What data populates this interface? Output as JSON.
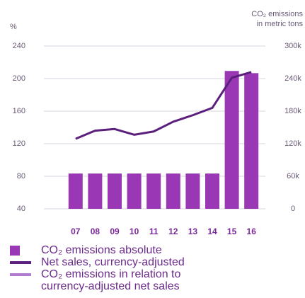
{
  "chart_data": {
    "type": "bar-line",
    "y_label": "%",
    "y2_label": "CO₂ emissions\nin metric tons",
    "categories": [
      "07",
      "08",
      "09",
      "10",
      "11",
      "12",
      "13",
      "14",
      "15",
      "16"
    ],
    "ylim": [
      40,
      240
    ],
    "yticks": [
      40,
      80,
      120,
      160,
      200,
      240
    ],
    "y2lim": [
      0,
      300000
    ],
    "y2ticks": [
      {
        "value": 0,
        "label": "0"
      },
      {
        "value": 60000,
        "label": "60k"
      },
      {
        "value": 120000,
        "label": "120k"
      },
      {
        "value": 180000,
        "label": "180k"
      },
      {
        "value": 240000,
        "label": "240k"
      },
      {
        "value": 300000,
        "label": "300k"
      }
    ],
    "grid": true,
    "series": [
      {
        "name": "CO₂ emissions absolute",
        "type": "bar",
        "axis": "y2",
        "color": "#9a37b4",
        "values": [
          65000,
          65000,
          65000,
          65000,
          65000,
          65000,
          65000,
          65000,
          254000,
          250000
        ]
      },
      {
        "name": "Net sales, currency-adjusted",
        "type": "line",
        "color": "#5b1f7c",
        "values": [
          126,
          136,
          138,
          131,
          135,
          147,
          155,
          164,
          201,
          208
        ]
      },
      {
        "name": "CO₂ emissions in relation to currency-adjusted net sales",
        "type": "line",
        "color": "#b07ccf",
        "values": [
          null,
          null,
          null,
          null,
          null,
          null,
          null,
          null,
          null,
          null
        ]
      }
    ]
  }
}
